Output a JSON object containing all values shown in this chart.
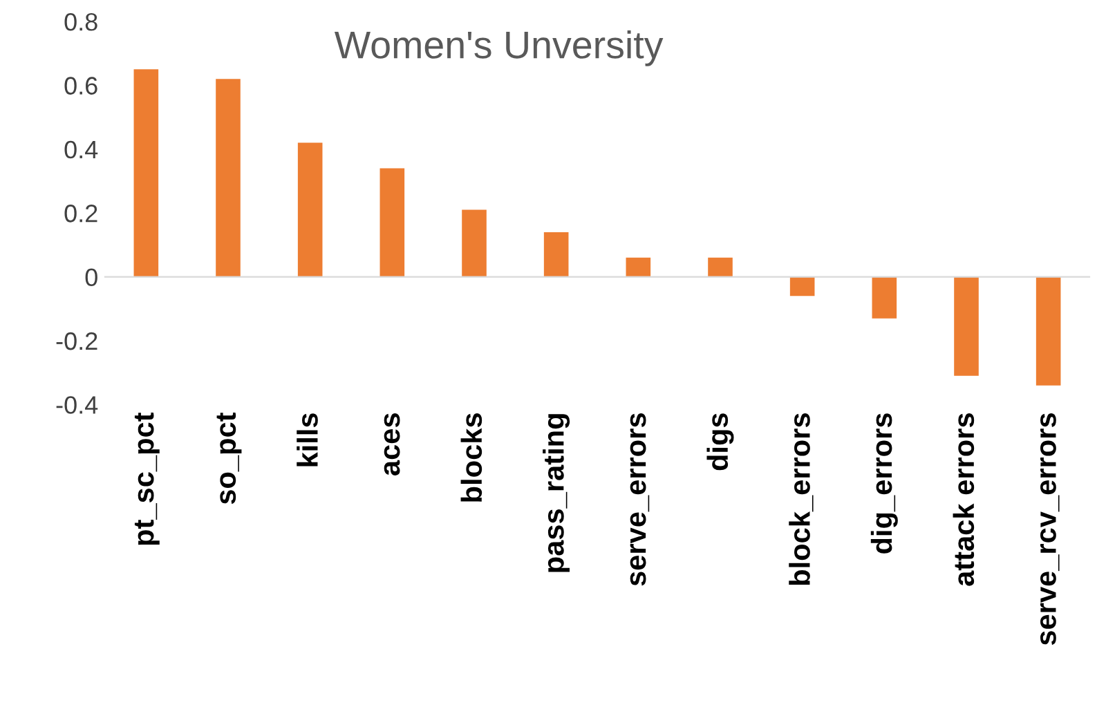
{
  "chart_data": {
    "type": "bar",
    "title": "Women's Unversity",
    "categories": [
      "pt_sc_pct",
      "so_pct",
      "kills",
      "aces",
      "blocks",
      "pass_rating",
      "serve_errors",
      "digs",
      "block_errors",
      "dig_errors",
      "attack errors",
      "serve_rcv_errors"
    ],
    "values": [
      0.65,
      0.62,
      0.42,
      0.34,
      0.21,
      0.14,
      0.06,
      0.06,
      -0.06,
      -0.13,
      -0.31,
      -0.34
    ],
    "color": "#ed7d31",
    "ylim": [
      -0.4,
      0.8
    ],
    "yticks": [
      -0.4,
      -0.2,
      0,
      0.2,
      0.4,
      0.6,
      0.8
    ],
    "legend": false
  }
}
